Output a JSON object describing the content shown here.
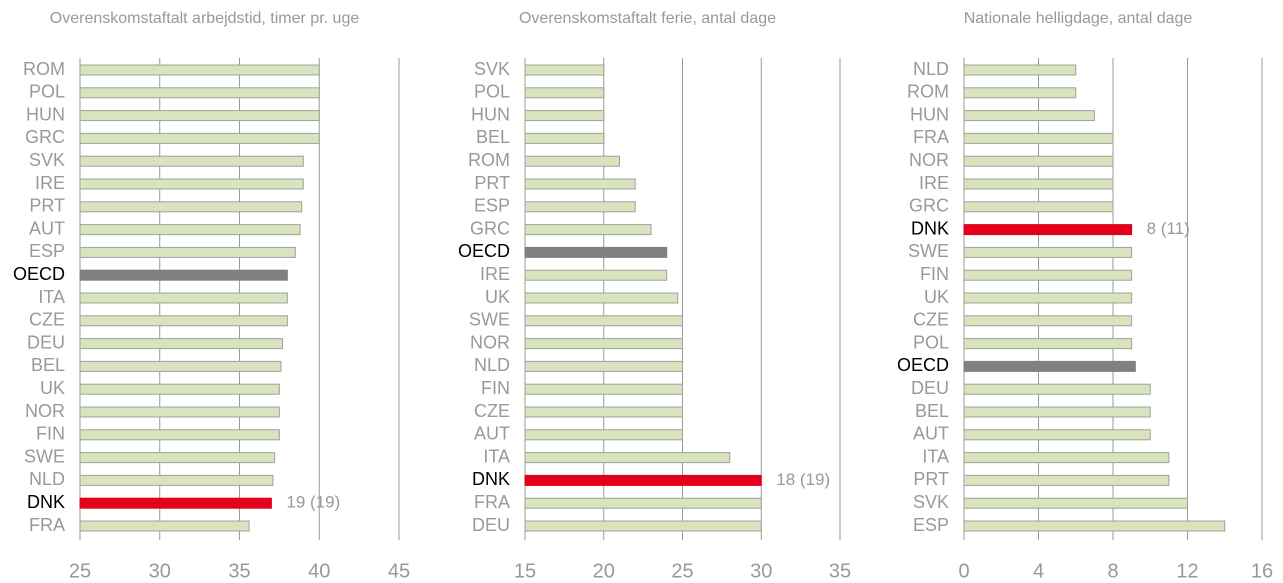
{
  "chart_data": [
    {
      "type": "barh",
      "title": "Overenskomstaftalt arbejdstid, timer pr. uge",
      "categories": [
        "ROM",
        "POL",
        "HUN",
        "GRC",
        "SVK",
        "IRE",
        "PRT",
        "AUT",
        "ESP",
        "OECD",
        "ITA",
        "CZE",
        "DEU",
        "BEL",
        "UK",
        "NOR",
        "FIN",
        "SWE",
        "NLD",
        "DNK",
        "FRA"
      ],
      "values": [
        40,
        40,
        40,
        40,
        39,
        39,
        38.9,
        38.8,
        38.5,
        38,
        38,
        38,
        37.7,
        37.6,
        37.5,
        37.5,
        37.5,
        37.2,
        37.1,
        37,
        35.6
      ],
      "color": "#d7e4bd",
      "colors": [
        "#d7e4bd",
        "#d7e4bd",
        "#d7e4bd",
        "#d7e4bd",
        "#d7e4bd",
        "#d7e4bd",
        "#d7e4bd",
        "#d7e4bd",
        "#d7e4bd",
        "#808080",
        "#d7e4bd",
        "#d7e4bd",
        "#d7e4bd",
        "#d7e4bd",
        "#d7e4bd",
        "#d7e4bd",
        "#d7e4bd",
        "#d7e4bd",
        "#d7e4bd",
        "#e3001b",
        "#d7e4bd"
      ],
      "xlim": [
        25,
        45
      ],
      "xticks": [
        25,
        30,
        35,
        40,
        45
      ],
      "grid": true,
      "annotations": [
        {
          "text": "19 (19)",
          "category": "DNK"
        }
      ]
    },
    {
      "type": "barh",
      "title": "Overenskomstaftalt ferie, antal dage",
      "categories": [
        "SVK",
        "POL",
        "HUN",
        "BEL",
        "ROM",
        "PRT",
        "ESP",
        "GRC",
        "OECD",
        "IRE",
        "UK",
        "SWE",
        "NOR",
        "NLD",
        "FIN",
        "CZE",
        "AUT",
        "ITA",
        "DNK",
        "FRA",
        "DEU"
      ],
      "values": [
        20,
        20,
        20,
        20,
        21,
        22,
        22,
        23,
        24,
        24,
        24.7,
        25,
        25,
        25,
        25,
        25,
        25,
        28,
        30,
        30,
        30
      ],
      "color": "#d7e4bd",
      "colors": [
        "#d7e4bd",
        "#d7e4bd",
        "#d7e4bd",
        "#d7e4bd",
        "#d7e4bd",
        "#d7e4bd",
        "#d7e4bd",
        "#d7e4bd",
        "#808080",
        "#d7e4bd",
        "#d7e4bd",
        "#d7e4bd",
        "#d7e4bd",
        "#d7e4bd",
        "#d7e4bd",
        "#d7e4bd",
        "#d7e4bd",
        "#d7e4bd",
        "#e3001b",
        "#d7e4bd",
        "#d7e4bd"
      ],
      "xlim": [
        15,
        35
      ],
      "xticks": [
        15,
        20,
        25,
        30,
        35
      ],
      "grid": true,
      "annotations": [
        {
          "text": "18 (19)",
          "category": "DNK"
        }
      ]
    },
    {
      "type": "barh",
      "title": "Nationale helligdage, antal dage",
      "categories": [
        "NLD",
        "ROM",
        "HUN",
        "FRA",
        "NOR",
        "IRE",
        "GRC",
        "DNK",
        "SWE",
        "FIN",
        "UK",
        "CZE",
        "POL",
        "OECD",
        "DEU",
        "BEL",
        "AUT",
        "ITA",
        "PRT",
        "SVK",
        "ESP"
      ],
      "values": [
        6,
        6,
        7,
        8,
        8,
        8,
        8,
        9,
        9,
        9,
        9,
        9,
        9,
        9.2,
        10,
        10,
        10,
        11,
        11,
        12,
        14
      ],
      "color": "#d7e4bd",
      "colors": [
        "#d7e4bd",
        "#d7e4bd",
        "#d7e4bd",
        "#d7e4bd",
        "#d7e4bd",
        "#d7e4bd",
        "#d7e4bd",
        "#e3001b",
        "#d7e4bd",
        "#d7e4bd",
        "#d7e4bd",
        "#d7e4bd",
        "#d7e4bd",
        "#808080",
        "#d7e4bd",
        "#d7e4bd",
        "#d7e4bd",
        "#d7e4bd",
        "#d7e4bd",
        "#d7e4bd",
        "#d7e4bd"
      ],
      "xlim": [
        0,
        16
      ],
      "xticks": [
        0,
        4,
        8,
        12,
        16
      ],
      "grid": true,
      "annotations": [
        {
          "text": "8 (11)",
          "category": "DNK"
        }
      ]
    }
  ]
}
